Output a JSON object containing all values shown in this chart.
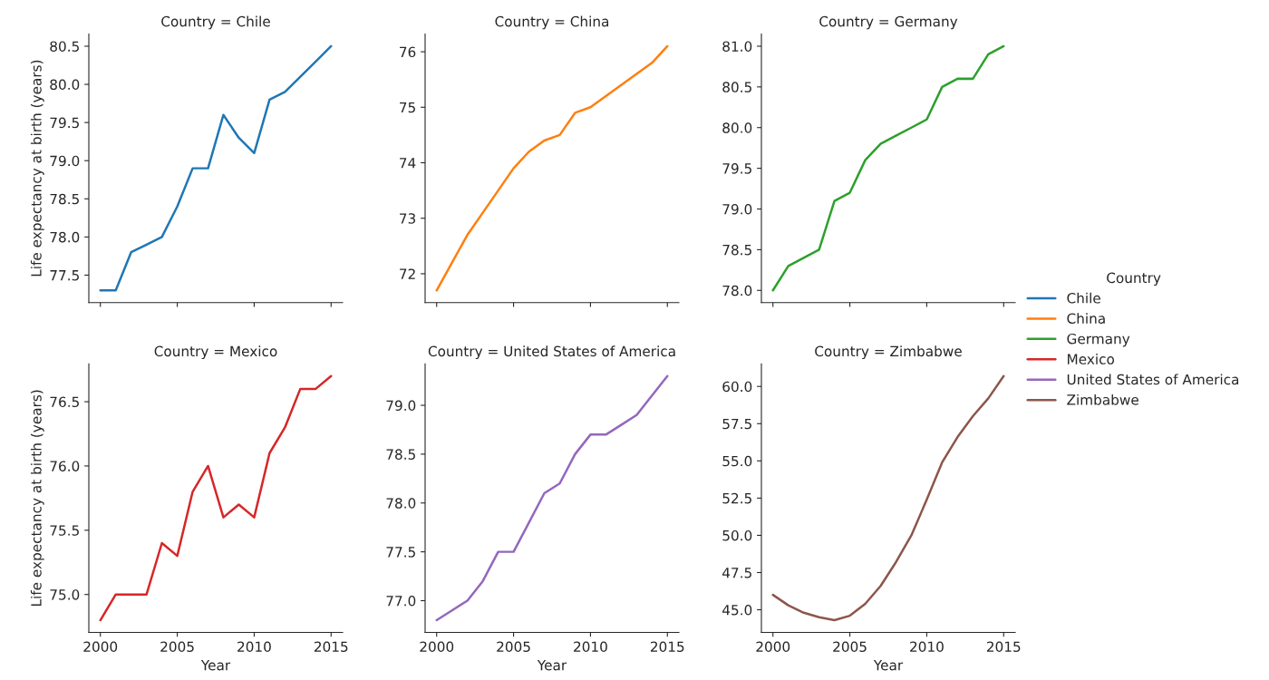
{
  "chart_data": [
    {
      "type": "line",
      "title": "Country = Chile",
      "ylabel": "Life expectancy at birth (years)",
      "legend_title": "Country",
      "legend": "right",
      "tick_labels": "y",
      "x": [
        2000,
        2001,
        2002,
        2003,
        2004,
        2005,
        2006,
        2007,
        2008,
        2009,
        2010,
        2011,
        2012,
        2013,
        2014,
        2015
      ],
      "xlim": [
        1999.25,
        2015.75
      ],
      "xticks": [
        2000,
        2005,
        2010,
        2015
      ],
      "ylim": [
        77.14,
        80.66
      ],
      "yticks": [
        {
          "value": 77.5,
          "label": "77.5"
        },
        {
          "value": 78.0,
          "label": "78.0"
        },
        {
          "value": 78.5,
          "label": "78.5"
        },
        {
          "value": 79.0,
          "label": "79.0"
        },
        {
          "value": 79.5,
          "label": "79.5"
        },
        {
          "value": 80.0,
          "label": "80.0"
        },
        {
          "value": 80.5,
          "label": "80.5"
        }
      ],
      "series": [
        {
          "name": "Chile",
          "color": "#1f77b4",
          "values": [
            77.3,
            77.3,
            77.8,
            77.9,
            78.0,
            78.4,
            78.9,
            78.9,
            79.6,
            79.3,
            79.1,
            79.8,
            79.9,
            80.1,
            80.3,
            80.5
          ]
        }
      ]
    },
    {
      "type": "line",
      "title": "Country = China",
      "tick_labels": "y",
      "x": [
        2000,
        2001,
        2002,
        2003,
        2004,
        2005,
        2006,
        2007,
        2008,
        2009,
        2010,
        2011,
        2012,
        2013,
        2014,
        2015
      ],
      "xlim": [
        1999.25,
        2015.75
      ],
      "xticks": [
        2000,
        2005,
        2010,
        2015
      ],
      "ylim": [
        71.48,
        76.32
      ],
      "yticks": [
        72,
        73,
        74,
        75,
        76
      ],
      "series": [
        {
          "name": "China",
          "color": "#ff7f0e",
          "values": [
            71.7,
            72.2,
            72.7,
            73.1,
            73.5,
            73.9,
            74.2,
            74.4,
            74.5,
            74.9,
            75.0,
            75.2,
            75.4,
            75.6,
            75.8,
            76.1
          ]
        }
      ]
    },
    {
      "type": "line",
      "title": "Country = Germany",
      "tick_labels": "y",
      "x": [
        2000,
        2001,
        2002,
        2003,
        2004,
        2005,
        2006,
        2007,
        2008,
        2009,
        2010,
        2011,
        2012,
        2013,
        2014,
        2015
      ],
      "xlim": [
        1999.25,
        2015.75
      ],
      "xticks": [
        2000,
        2005,
        2010,
        2015
      ],
      "ylim": [
        77.85,
        81.15
      ],
      "yticks": [
        {
          "value": 78.0,
          "label": "78.0"
        },
        {
          "value": 78.5,
          "label": "78.5"
        },
        {
          "value": 79.0,
          "label": "79.0"
        },
        {
          "value": 79.5,
          "label": "79.5"
        },
        {
          "value": 80.0,
          "label": "80.0"
        },
        {
          "value": 80.5,
          "label": "80.5"
        },
        {
          "value": 81.0,
          "label": "81.0"
        }
      ],
      "series": [
        {
          "name": "Germany",
          "color": "#2ca02c",
          "values": [
            78.0,
            78.3,
            78.4,
            78.5,
            79.1,
            79.2,
            79.6,
            79.8,
            79.9,
            80.0,
            80.1,
            80.5,
            80.6,
            80.6,
            80.9,
            81.0
          ]
        }
      ]
    },
    {
      "type": "line",
      "title": "Country = Mexico",
      "xlabel": "Year",
      "ylabel": "Life expectancy at birth (years)",
      "x": [
        2000,
        2001,
        2002,
        2003,
        2004,
        2005,
        2006,
        2007,
        2008,
        2009,
        2010,
        2011,
        2012,
        2013,
        2014,
        2015
      ],
      "xlim": [
        1999.25,
        2015.75
      ],
      "xticks": [
        2000,
        2005,
        2010,
        2015
      ],
      "ylim": [
        74.705,
        76.795
      ],
      "yticks": [
        {
          "value": 75.0,
          "label": "75.0"
        },
        {
          "value": 75.5,
          "label": "75.5"
        },
        {
          "value": 76.0,
          "label": "76.0"
        },
        {
          "value": 76.5,
          "label": "76.5"
        }
      ],
      "series": [
        {
          "name": "Mexico",
          "color": "#d62728",
          "values": [
            74.8,
            75.0,
            75.0,
            75.0,
            75.4,
            75.3,
            75.8,
            76.0,
            75.6,
            75.7,
            75.6,
            76.1,
            76.3,
            76.6,
            76.6,
            76.7
          ]
        }
      ]
    },
    {
      "type": "line",
      "title": "Country = United States of America",
      "xlabel": "Year",
      "x": [
        2000,
        2001,
        2002,
        2003,
        2004,
        2005,
        2006,
        2007,
        2008,
        2009,
        2010,
        2011,
        2012,
        2013,
        2014,
        2015
      ],
      "xlim": [
        1999.25,
        2015.75
      ],
      "xticks": [
        2000,
        2005,
        2010,
        2015
      ],
      "ylim": [
        76.675,
        79.425
      ],
      "yticks": [
        {
          "value": 77.0,
          "label": "77.0"
        },
        {
          "value": 77.5,
          "label": "77.5"
        },
        {
          "value": 78.0,
          "label": "78.0"
        },
        {
          "value": 78.5,
          "label": "78.5"
        },
        {
          "value": 79.0,
          "label": "79.0"
        }
      ],
      "series": [
        {
          "name": "United States of America",
          "color": "#9467bd",
          "values": [
            76.8,
            76.9,
            77.0,
            77.2,
            77.5,
            77.5,
            77.8,
            78.1,
            78.2,
            78.5,
            78.7,
            78.7,
            78.8,
            78.9,
            79.1,
            79.3
          ]
        }
      ]
    },
    {
      "type": "line",
      "title": "Country = Zimbabwe",
      "xlabel": "Year",
      "x": [
        2000,
        2001,
        2002,
        2003,
        2004,
        2005,
        2006,
        2007,
        2008,
        2009,
        2010,
        2011,
        2012,
        2013,
        2014,
        2015
      ],
      "xlim": [
        1999.25,
        2015.75
      ],
      "xticks": [
        2000,
        2005,
        2010,
        2015
      ],
      "ylim": [
        43.48,
        61.52
      ],
      "yticks": [
        {
          "value": 45.0,
          "label": "45.0"
        },
        {
          "value": 47.5,
          "label": "47.5"
        },
        {
          "value": 50.0,
          "label": "50.0"
        },
        {
          "value": 52.5,
          "label": "52.5"
        },
        {
          "value": 55.0,
          "label": "55.0"
        },
        {
          "value": 57.5,
          "label": "57.5"
        },
        {
          "value": 60.0,
          "label": "60.0"
        }
      ],
      "series": [
        {
          "name": "Zimbabwe",
          "color": "#8c564b",
          "values": [
            46.0,
            45.3,
            44.8,
            44.5,
            44.3,
            44.6,
            45.4,
            46.6,
            48.2,
            50.0,
            52.4,
            54.9,
            56.6,
            58.0,
            59.2,
            60.7
          ]
        }
      ]
    }
  ]
}
